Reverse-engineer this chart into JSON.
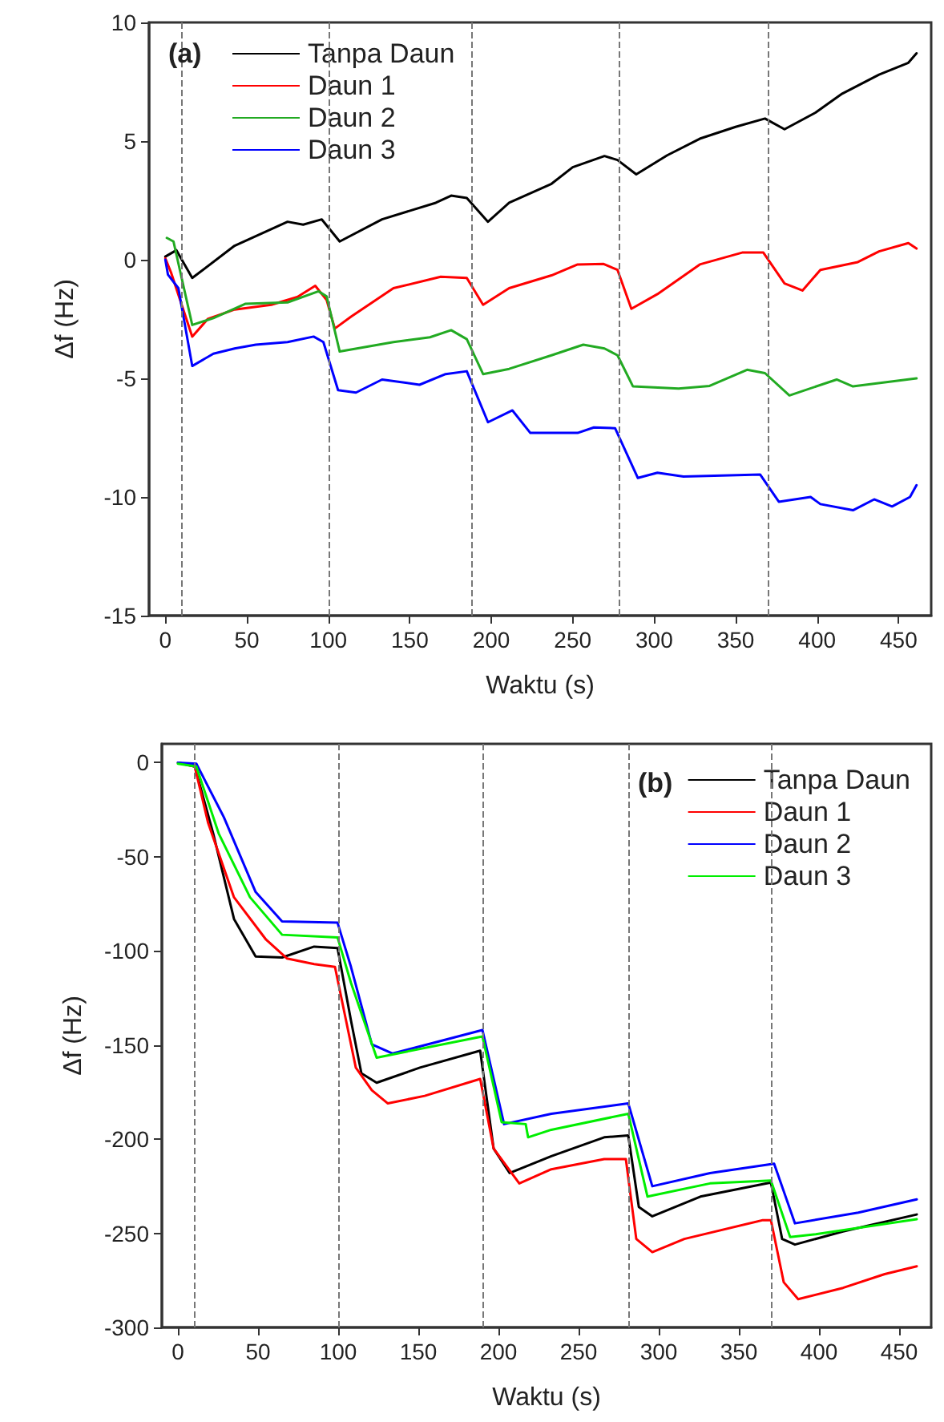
{
  "chart_data": [
    {
      "type": "line",
      "title": "(a)",
      "xlabel": "Waktu (s)",
      "ylabel": "Δf (Hz)",
      "xlim": [
        -10,
        470
      ],
      "xticks": [
        0,
        50,
        100,
        150,
        200,
        250,
        300,
        350,
        400,
        450
      ],
      "ylim": [
        -15,
        10
      ],
      "yticks": [
        -15,
        -10,
        -5,
        0,
        5,
        10
      ],
      "legend": "top left",
      "marker": "none",
      "line_style": "solid",
      "ref_lines": [
        {
          "axis": "x",
          "value": 10,
          "color": "#777777",
          "line_style": "dashed"
        },
        {
          "axis": "x",
          "value": 100,
          "color": "#777777",
          "line_style": "dashed"
        },
        {
          "axis": "x",
          "value": 188,
          "color": "#777777",
          "line_style": "dashed"
        },
        {
          "axis": "x",
          "value": 278,
          "color": "#777777",
          "line_style": "dashed"
        },
        {
          "axis": "x",
          "value": 370,
          "color": "#777777",
          "line_style": "dashed"
        }
      ],
      "series": [
        {
          "name": "Tanpa Daun",
          "color": "#000000",
          "x": [
            0,
            6.8,
            16.5,
            42.5,
            75,
            84.6,
            96,
            107,
            133,
            166,
            175.4,
            185,
            198,
            211,
            237,
            250,
            269.5,
            277.5,
            289,
            308,
            328,
            350,
            368,
            380,
            399,
            415.4,
            438,
            456,
            461
          ],
          "values": [
            0.13,
            0.4,
            -0.77,
            0.59,
            1.6,
            1.48,
            1.7,
            0.77,
            1.7,
            2.4,
            2.7,
            2.6,
            1.6,
            2.4,
            3.2,
            3.9,
            4.37,
            4.2,
            3.6,
            4.4,
            5.1,
            5.6,
            5.95,
            5.5,
            6.2,
            7.0,
            7.8,
            8.3,
            8.7
          ]
        },
        {
          "name": "Daun 1",
          "color": "#ff0000",
          "x": [
            0,
            3.5,
            16.5,
            26,
            42.5,
            65,
            81,
            92,
            99,
            104,
            114,
            140,
            169,
            185,
            195,
            211,
            237,
            253,
            269,
            277.5,
            286,
            302,
            328,
            354,
            367,
            380,
            391,
            402,
            425,
            438,
            456,
            461
          ],
          "values": [
            0.06,
            -0.54,
            -3.24,
            -2.5,
            -2.1,
            -1.9,
            -1.57,
            -1.1,
            -1.7,
            -2.9,
            -2.4,
            -1.2,
            -0.72,
            -0.77,
            -1.9,
            -1.2,
            -0.66,
            -0.2,
            -0.18,
            -0.43,
            -2.07,
            -1.45,
            -0.2,
            0.3,
            0.3,
            -1.0,
            -1.3,
            -0.43,
            -0.1,
            0.35,
            0.7,
            0.47
          ]
        },
        {
          "name": "Daun 2",
          "color": "#22aa22",
          "x": [
            0.9,
            5,
            10,
            16.5,
            29.5,
            49,
            75,
            94,
            99,
            107,
            140,
            162.4,
            175.4,
            185,
            195,
            211,
            237,
            256.5,
            269.5,
            277.5,
            287,
            315,
            334,
            357,
            368,
            383,
            412,
            422,
            461
          ],
          "values": [
            0.92,
            0.77,
            -0.77,
            -2.75,
            -2.46,
            -1.86,
            -1.8,
            -1.33,
            -1.55,
            -3.87,
            -3.47,
            -3.27,
            -2.97,
            -3.35,
            -4.82,
            -4.6,
            -4.03,
            -3.58,
            -3.74,
            -4.03,
            -5.34,
            -5.43,
            -5.32,
            -4.64,
            -4.78,
            -5.72,
            -5.05,
            -5.34,
            -5.0
          ]
        },
        {
          "name": "Daun 3",
          "color": "#0000ff",
          "x": [
            0,
            1.6,
            8,
            16.5,
            29.5,
            42.5,
            55.5,
            75,
            91,
            97,
            106,
            117,
            133,
            156,
            172,
            185,
            198,
            213,
            224,
            253,
            263,
            276,
            290,
            302,
            318,
            365,
            376.5,
            396,
            402,
            422,
            435,
            446,
            457,
            461
          ],
          "values": [
            0,
            -0.63,
            -1.2,
            -4.48,
            -3.96,
            -3.74,
            -3.58,
            -3.47,
            -3.24,
            -3.47,
            -5.5,
            -5.6,
            -5.05,
            -5.27,
            -4.82,
            -4.7,
            -6.85,
            -6.35,
            -7.3,
            -7.3,
            -7.07,
            -7.1,
            -9.2,
            -8.98,
            -9.14,
            -9.05,
            -10.2,
            -10.0,
            -10.3,
            -10.56,
            -10.1,
            -10.4,
            -10.0,
            -9.5
          ]
        }
      ]
    },
    {
      "type": "line",
      "title": "(b)",
      "xlabel": "Waktu (s)",
      "ylabel": "Δf (Hz)",
      "xlim": [
        -10,
        470
      ],
      "xticks": [
        0,
        50,
        100,
        150,
        200,
        250,
        300,
        350,
        400,
        450
      ],
      "ylim": [
        -300,
        10
      ],
      "yticks": [
        -300,
        -250,
        -200,
        -150,
        -100,
        -50,
        0
      ],
      "legend": "top right",
      "marker": "none",
      "line_style": "solid",
      "ref_lines": [
        {
          "axis": "x",
          "value": 10,
          "color": "#777777",
          "line_style": "dashed"
        },
        {
          "axis": "x",
          "value": 100,
          "color": "#777777",
          "line_style": "dashed"
        },
        {
          "axis": "x",
          "value": 190,
          "color": "#777777",
          "line_style": "dashed"
        },
        {
          "axis": "x",
          "value": 281,
          "color": "#777777",
          "line_style": "dashed"
        },
        {
          "axis": "x",
          "value": 370,
          "color": "#777777",
          "line_style": "dashed"
        }
      ],
      "series": [
        {
          "name": "Tanpa Daun",
          "color": "#000000",
          "x": [
            0.6,
            10.5,
            22,
            35,
            48.5,
            65,
            85,
            99.6,
            108,
            114.5,
            124,
            151,
            188.6,
            197,
            207,
            233,
            266,
            281,
            287.6,
            296,
            326,
            370,
            377,
            385,
            415,
            461
          ],
          "values": [
            0,
            -2,
            -37.5,
            -83,
            -103,
            -103.5,
            -97.7,
            -98.5,
            -137,
            -165,
            -170,
            -162,
            -153,
            -205,
            -218,
            -209,
            -199,
            -198,
            -236,
            -241,
            -230.5,
            -223,
            -253,
            -256,
            -249,
            -240
          ]
        },
        {
          "name": "Daun 1",
          "color": "#ff0000",
          "x": [
            0,
            10.5,
            18.8,
            35,
            55,
            68,
            85,
            98,
            111,
            121,
            131,
            154,
            188.6,
            197,
            213,
            233,
            266,
            279.5,
            286,
            296,
            316,
            365,
            370,
            378,
            387,
            415,
            441,
            461
          ],
          "values": [
            0,
            -2,
            -31.8,
            -71.5,
            -94,
            -104,
            -107,
            -108.5,
            -162,
            -174,
            -181,
            -177,
            -168,
            -205,
            -223.5,
            -216,
            -210.6,
            -210.6,
            -253,
            -260,
            -253,
            -243,
            -243,
            -276,
            -285,
            -279,
            -271.7,
            -267.5
          ]
        },
        {
          "name": "Daun 2",
          "color": "#0000ff",
          "x": [
            0,
            11.5,
            28.7,
            48.5,
            65,
            99.6,
            108,
            121,
            134,
            190,
            203.5,
            233,
            281,
            296,
            332,
            372,
            385,
            424.6,
            461
          ],
          "values": [
            0,
            -0.5,
            -29,
            -68.7,
            -84.3,
            -85,
            -108.5,
            -149.6,
            -154.5,
            -142,
            -192,
            -186.5,
            -181,
            -225,
            -218,
            -213,
            -244.7,
            -239,
            -232
          ]
        },
        {
          "name": "Daun 3",
          "color": "#00ee00",
          "x": [
            0,
            11.5,
            25.4,
            45,
            65,
            99.6,
            108,
            124,
            190,
            202,
            217,
            218.5,
            233,
            281,
            293,
            332,
            370,
            382,
            398,
            461
          ],
          "values": [
            -0.5,
            -2,
            -37.5,
            -71.5,
            -91.4,
            -92.8,
            -117,
            -156.7,
            -145.4,
            -191,
            -192,
            -199,
            -195,
            -186.5,
            -230.5,
            -223.5,
            -222,
            -252,
            -250.5,
            -242.5
          ]
        }
      ]
    }
  ]
}
